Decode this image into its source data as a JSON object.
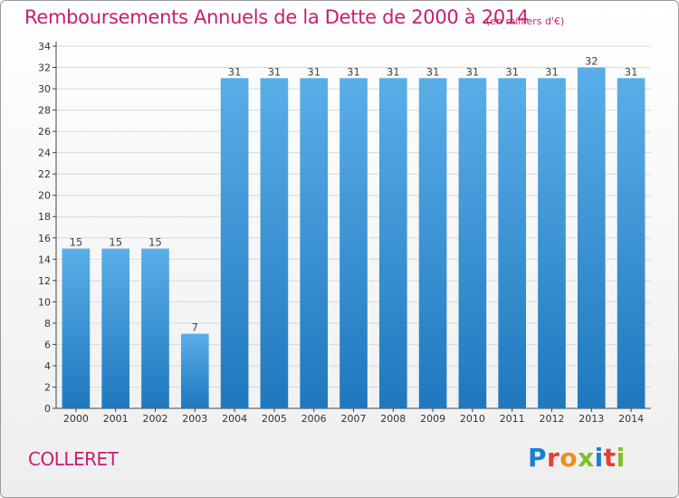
{
  "header": {
    "title": "Remboursements Annuels de la Dette de 2000 à 2014",
    "subtitle": "(en milliers d'€)"
  },
  "footer": {
    "commune": "COLLERET",
    "brand": [
      "P",
      "r",
      "o",
      "x",
      "i",
      "t",
      "i"
    ]
  },
  "colors": {
    "bar_top": "#5aaee8",
    "bar_bottom": "#1f78be",
    "title": "#c81e6e",
    "grid": "#d8d8d8"
  },
  "chart_data": {
    "type": "bar",
    "categories": [
      "2000",
      "2001",
      "2002",
      "2003",
      "2004",
      "2005",
      "2006",
      "2007",
      "2008",
      "2009",
      "2010",
      "2011",
      "2012",
      "2013",
      "2014"
    ],
    "values": [
      15,
      15,
      15,
      7,
      31,
      31,
      31,
      31,
      31,
      31,
      31,
      31,
      31,
      32,
      31
    ],
    "data_labels": [
      "15",
      "15",
      "15",
      "7",
      "31",
      "31",
      "31",
      "31",
      "31",
      "31",
      "31",
      "31",
      "31",
      "32",
      "31"
    ],
    "yticks": [
      0,
      2,
      4,
      6,
      8,
      10,
      12,
      14,
      16,
      18,
      20,
      22,
      24,
      26,
      28,
      30,
      32,
      34
    ],
    "ylim": [
      0,
      34
    ],
    "grid": true,
    "legend": "none"
  }
}
